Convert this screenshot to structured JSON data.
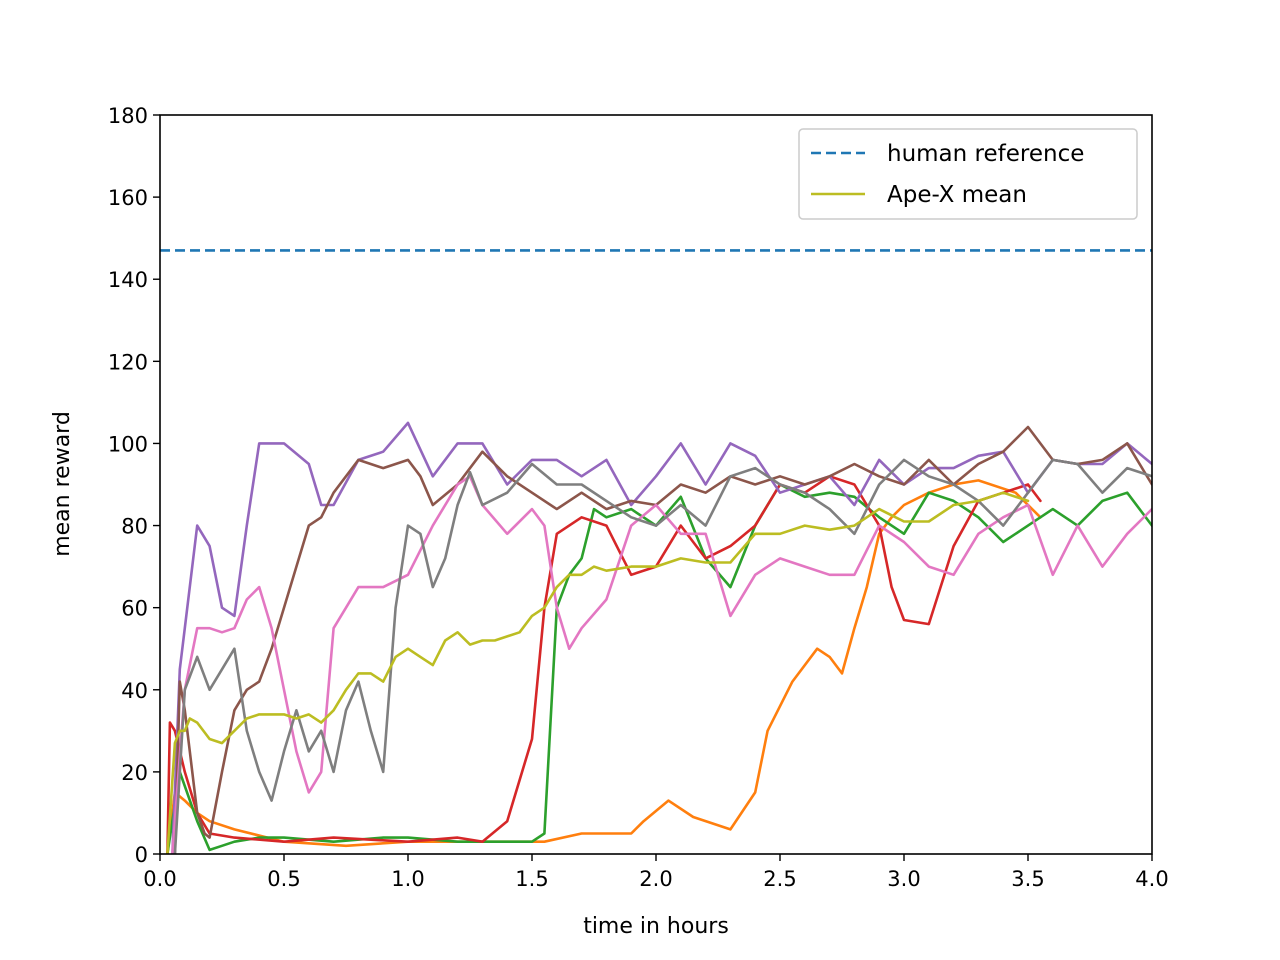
{
  "chart_data": {
    "type": "line",
    "xlabel": "time in hours",
    "ylabel": "mean reward",
    "xlim": [
      0.0,
      4.0
    ],
    "ylim": [
      0,
      180
    ],
    "xticks": [
      0.0,
      0.5,
      1.0,
      1.5,
      2.0,
      2.5,
      3.0,
      3.5,
      4.0
    ],
    "xtick_labels": [
      "0.0",
      "0.5",
      "1.0",
      "1.5",
      "2.0",
      "2.5",
      "3.0",
      "3.5",
      "4.0"
    ],
    "yticks": [
      0,
      20,
      40,
      60,
      80,
      100,
      120,
      140,
      160,
      180
    ],
    "ytick_labels": [
      "0",
      "20",
      "40",
      "60",
      "80",
      "100",
      "120",
      "140",
      "160",
      "180"
    ],
    "grid": false,
    "legend": {
      "position": "top-right",
      "entries": [
        "human reference",
        "Ape-X mean"
      ]
    },
    "reference_line": {
      "name": "human reference",
      "y": 147,
      "color": "#1f77b4",
      "style": "dashed"
    },
    "series": [
      {
        "color": "#ff7f0e",
        "x": [
          0.03,
          0.06,
          0.1,
          0.15,
          0.2,
          0.3,
          0.5,
          0.75,
          1.0,
          1.3,
          1.55,
          1.7,
          1.9,
          1.95,
          2.05,
          2.15,
          2.3,
          2.4,
          2.45,
          2.55,
          2.65,
          2.7,
          2.75,
          2.8,
          2.85,
          2.9,
          2.95,
          3.0,
          3.1,
          3.2,
          3.3,
          3.45,
          3.55
        ],
        "y": [
          0,
          15,
          13,
          10,
          8,
          6,
          3,
          2,
          3,
          3,
          3,
          5,
          5,
          8,
          13,
          9,
          6,
          15,
          30,
          42,
          50,
          48,
          44,
          55,
          65,
          78,
          82,
          85,
          88,
          90,
          91,
          88,
          82
        ]
      },
      {
        "color": "#2ca02c",
        "x": [
          0.03,
          0.08,
          0.15,
          0.2,
          0.25,
          0.3,
          0.4,
          0.5,
          0.7,
          0.9,
          1.0,
          1.2,
          1.4,
          1.5,
          1.55,
          1.6,
          1.65,
          1.7,
          1.75,
          1.8,
          1.9,
          2.0,
          2.1,
          2.2,
          2.3,
          2.4,
          2.5,
          2.6,
          2.7,
          2.8,
          2.9,
          3.0,
          3.1,
          3.2,
          3.3,
          3.4,
          3.5,
          3.6,
          3.7,
          3.8,
          3.9,
          4.0
        ],
        "y": [
          0,
          20,
          8,
          1,
          2,
          3,
          4,
          4,
          3,
          4,
          4,
          3,
          3,
          3,
          5,
          60,
          68,
          72,
          84,
          82,
          84,
          80,
          87,
          72,
          65,
          80,
          90,
          87,
          88,
          87,
          82,
          78,
          88,
          86,
          82,
          76,
          80,
          84,
          80,
          86,
          88,
          80
        ]
      },
      {
        "color": "#d62728",
        "x": [
          0.03,
          0.04,
          0.06,
          0.1,
          0.15,
          0.2,
          0.3,
          0.5,
          0.7,
          1.0,
          1.2,
          1.3,
          1.4,
          1.5,
          1.55,
          1.6,
          1.7,
          1.8,
          1.9,
          2.0,
          2.1,
          2.2,
          2.3,
          2.4,
          2.5,
          2.6,
          2.7,
          2.8,
          2.9,
          2.95,
          3.0,
          3.1,
          3.2,
          3.3,
          3.4,
          3.5,
          3.55
        ],
        "y": [
          0,
          32,
          30,
          20,
          10,
          5,
          4,
          3,
          4,
          3,
          4,
          3,
          8,
          28,
          60,
          78,
          82,
          80,
          68,
          70,
          80,
          72,
          75,
          80,
          90,
          88,
          92,
          90,
          80,
          65,
          57,
          56,
          75,
          86,
          88,
          90,
          86
        ]
      },
      {
        "color": "#9467bd",
        "x": [
          0.05,
          0.08,
          0.1,
          0.15,
          0.2,
          0.25,
          0.3,
          0.35,
          0.4,
          0.5,
          0.6,
          0.65,
          0.7,
          0.8,
          0.9,
          1.0,
          1.1,
          1.2,
          1.3,
          1.4,
          1.5,
          1.6,
          1.7,
          1.8,
          1.9,
          2.0,
          2.1,
          2.2,
          2.3,
          2.4,
          2.5,
          2.6,
          2.7,
          2.8,
          2.9,
          3.0,
          3.1,
          3.2,
          3.3,
          3.4,
          3.5,
          3.6,
          3.7,
          3.8,
          3.9,
          4.0
        ],
        "y": [
          0,
          45,
          55,
          80,
          75,
          60,
          58,
          80,
          100,
          100,
          95,
          85,
          85,
          96,
          98,
          105,
          92,
          100,
          100,
          90,
          96,
          96,
          92,
          96,
          85,
          92,
          100,
          90,
          100,
          97,
          88,
          90,
          92,
          85,
          96,
          90,
          94,
          94,
          97,
          98,
          88,
          96,
          95,
          95,
          100,
          95
        ]
      },
      {
        "color": "#8c564b",
        "x": [
          0.06,
          0.08,
          0.1,
          0.12,
          0.15,
          0.18,
          0.2,
          0.25,
          0.3,
          0.35,
          0.4,
          0.45,
          0.5,
          0.55,
          0.6,
          0.65,
          0.7,
          0.8,
          0.9,
          1.0,
          1.05,
          1.1,
          1.2,
          1.3,
          1.4,
          1.5,
          1.6,
          1.7,
          1.8,
          1.9,
          2.0,
          2.1,
          2.2,
          2.3,
          2.4,
          2.5,
          2.6,
          2.7,
          2.8,
          2.9,
          3.0,
          3.1,
          3.2,
          3.3,
          3.4,
          3.5,
          3.6,
          3.7,
          3.8,
          3.9,
          4.0
        ],
        "y": [
          0,
          42,
          35,
          25,
          10,
          5,
          4,
          20,
          35,
          40,
          42,
          50,
          60,
          70,
          80,
          82,
          88,
          96,
          94,
          96,
          92,
          85,
          90,
          98,
          92,
          88,
          84,
          88,
          84,
          86,
          85,
          90,
          88,
          92,
          90,
          92,
          90,
          92,
          95,
          92,
          90,
          96,
          90,
          95,
          98,
          104,
          96,
          95,
          96,
          100,
          90
        ]
      },
      {
        "color": "#e377c2",
        "x": [
          0.05,
          0.1,
          0.15,
          0.2,
          0.25,
          0.3,
          0.35,
          0.4,
          0.45,
          0.5,
          0.55,
          0.6,
          0.65,
          0.7,
          0.75,
          0.8,
          0.9,
          1.0,
          1.1,
          1.2,
          1.25,
          1.3,
          1.4,
          1.5,
          1.55,
          1.6,
          1.65,
          1.7,
          1.8,
          1.9,
          2.0,
          2.1,
          2.2,
          2.3,
          2.4,
          2.5,
          2.6,
          2.7,
          2.8,
          2.9,
          3.0,
          3.1,
          3.2,
          3.3,
          3.4,
          3.5,
          3.6,
          3.7,
          3.8,
          3.9,
          4.0
        ],
        "y": [
          0,
          40,
          55,
          55,
          54,
          55,
          62,
          65,
          55,
          40,
          25,
          15,
          20,
          55,
          60,
          65,
          65,
          68,
          80,
          90,
          92,
          85,
          78,
          84,
          80,
          60,
          50,
          55,
          62,
          80,
          85,
          78,
          78,
          58,
          68,
          72,
          70,
          68,
          68,
          80,
          76,
          70,
          68,
          78,
          82,
          85,
          68,
          80,
          70,
          78,
          84
        ]
      },
      {
        "color": "#7f7f7f",
        "x": [
          0.06,
          0.1,
          0.15,
          0.2,
          0.25,
          0.3,
          0.35,
          0.4,
          0.45,
          0.5,
          0.55,
          0.6,
          0.65,
          0.7,
          0.75,
          0.8,
          0.85,
          0.9,
          0.95,
          1.0,
          1.05,
          1.1,
          1.15,
          1.2,
          1.25,
          1.3,
          1.4,
          1.5,
          1.6,
          1.7,
          1.8,
          1.9,
          2.0,
          2.1,
          2.2,
          2.3,
          2.4,
          2.5,
          2.6,
          2.7,
          2.8,
          2.9,
          3.0,
          3.1,
          3.2,
          3.3,
          3.4,
          3.5,
          3.6,
          3.7,
          3.8,
          3.9,
          4.0
        ],
        "y": [
          0,
          40,
          48,
          40,
          45,
          50,
          30,
          20,
          13,
          25,
          35,
          25,
          30,
          20,
          35,
          42,
          30,
          20,
          60,
          80,
          78,
          65,
          72,
          85,
          93,
          85,
          88,
          95,
          90,
          90,
          86,
          82,
          80,
          85,
          80,
          92,
          94,
          90,
          88,
          84,
          78,
          90,
          96,
          92,
          90,
          86,
          80,
          88,
          96,
          95,
          88,
          94,
          92
        ]
      },
      {
        "color": "#bcbd22",
        "x": [
          0.03,
          0.06,
          0.08,
          0.1,
          0.12,
          0.15,
          0.2,
          0.25,
          0.3,
          0.35,
          0.4,
          0.45,
          0.5,
          0.55,
          0.6,
          0.65,
          0.7,
          0.75,
          0.8,
          0.85,
          0.9,
          0.95,
          1.0,
          1.05,
          1.1,
          1.15,
          1.2,
          1.25,
          1.3,
          1.35,
          1.4,
          1.45,
          1.5,
          1.55,
          1.6,
          1.65,
          1.7,
          1.75,
          1.8,
          1.9,
          2.0,
          2.1,
          2.2,
          2.3,
          2.4,
          2.5,
          2.6,
          2.7,
          2.8,
          2.9,
          3.0,
          3.1,
          3.2,
          3.3,
          3.4,
          3.5
        ],
        "y": [
          0,
          27,
          30,
          30,
          33,
          32,
          28,
          27,
          30,
          33,
          34,
          34,
          34,
          33,
          34,
          32,
          35,
          40,
          44,
          44,
          42,
          48,
          50,
          48,
          46,
          52,
          54,
          51,
          52,
          52,
          53,
          54,
          58,
          60,
          65,
          68,
          68,
          70,
          69,
          70,
          70,
          72,
          71,
          71,
          78,
          78,
          80,
          79,
          80,
          84,
          81,
          81,
          85,
          86,
          88,
          86
        ]
      }
    ]
  }
}
